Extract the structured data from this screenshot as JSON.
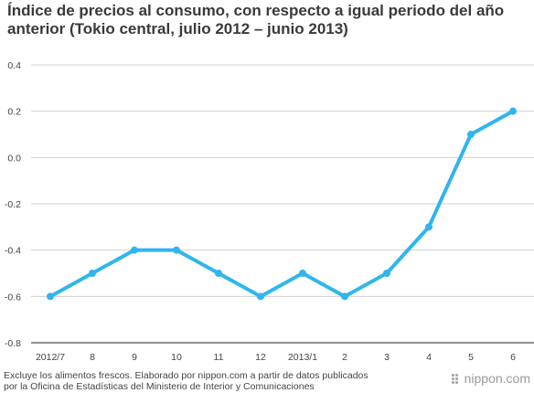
{
  "title": "Índice de precios al consumo, con respecto a igual periodo del año anterior (Tokio central, julio 2012 – junio 2013)",
  "footnote_line1": "Excluye los alimentos frescos. Elaborado por nippon.com a partir de datos publicados",
  "footnote_line2": "por la Oficina de Estadísticas del Ministerio de Interior y Comunicaciones",
  "logo_text": "nippon.com",
  "colors": {
    "line": "#2fb6ec",
    "grid": "#d0d0d0",
    "axis": "#222222"
  },
  "chart_data": {
    "type": "line",
    "title": "Índice de precios al consumo, con respecto a igual periodo del año anterior (Tokio central, julio 2012 – junio 2013)",
    "categories": [
      "2012/7",
      "8",
      "9",
      "10",
      "11",
      "12",
      "2013/1",
      "2",
      "3",
      "4",
      "5",
      "6"
    ],
    "series": [
      {
        "values": [
          -0.6,
          -0.5,
          -0.4,
          -0.4,
          -0.5,
          -0.6,
          -0.5,
          -0.6,
          -0.5,
          -0.3,
          0.1,
          0.2
        ]
      }
    ],
    "yticks": [
      "0.4",
      "0.2",
      "0.0",
      "-0.2",
      "-0.4",
      "-0.6",
      "-0.8"
    ],
    "ylim": [
      -0.8,
      0.4
    ],
    "grid": true,
    "xlabel": "",
    "ylabel": ""
  }
}
